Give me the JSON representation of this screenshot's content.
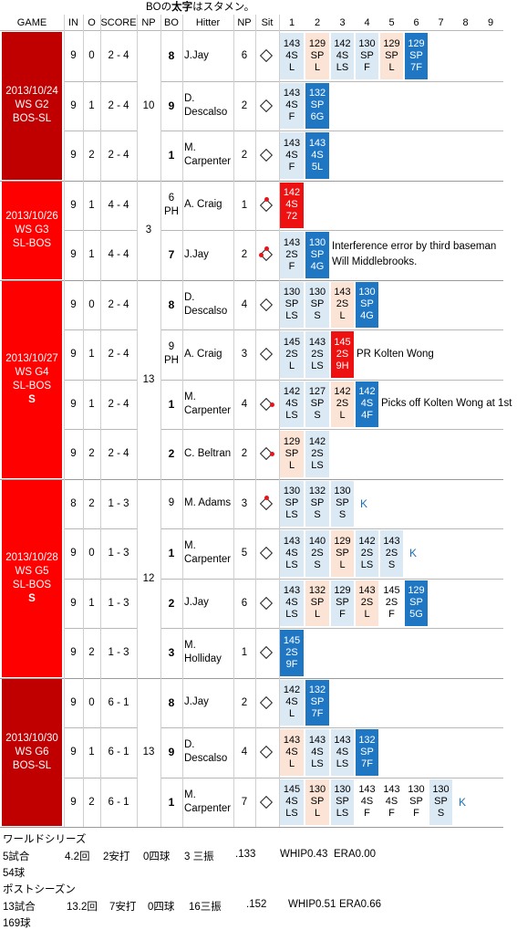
{
  "top_note": {
    "pre": "BOの",
    "bold": "太字",
    "post": "はスタメン。"
  },
  "headers": [
    "GAME",
    "IN",
    "O",
    "SCORE",
    "NP",
    "BO",
    "Hitter",
    "NP",
    "Sit",
    "1",
    "2",
    "3",
    "4",
    "5",
    "6",
    "7",
    "8",
    "9"
  ],
  "colors": {
    "ws_dark": "#c00000",
    "ws_bright": "#ff0000",
    "strike_blue": "#1f77c4",
    "ball_peach": "#fbe4d5",
    "strike_light": "#dbe9f4",
    "hit_red": "#ee1111",
    "k_color": "#1f6fb5",
    "runner_dot": "#e8141c"
  },
  "games": [
    {
      "lines": [
        "2013/10/24",
        "WS G2",
        "BOS-SL"
      ],
      "extra": "",
      "color": "ws_dark",
      "np": "10",
      "rows": [
        {
          "in": "9",
          "o": "0",
          "score": "2 - 4",
          "bo": "8",
          "starter": true,
          "hitter": "J.Jay",
          "np": "6",
          "sit": {
            "show": true,
            "runners": []
          },
          "pitches": [
            {
              "t": [
                "143",
                "4S",
                "L"
              ],
              "c": "light"
            },
            {
              "t": [
                "129",
                "SP",
                "L"
              ],
              "c": "peach"
            },
            {
              "t": [
                "142",
                "4S",
                "LS"
              ],
              "c": "light"
            },
            {
              "t": [
                "130",
                "SP",
                "F"
              ],
              "c": "light"
            },
            {
              "t": [
                "129",
                "SP",
                "L"
              ],
              "c": "peach"
            },
            {
              "t": [
                "129",
                "SP",
                "7F"
              ],
              "c": "blue"
            }
          ],
          "note": "",
          "k": ""
        },
        {
          "in": "9",
          "o": "1",
          "score": "2 - 4",
          "bo": "9",
          "starter": true,
          "hitter": "D. Descalso",
          "np": "2",
          "sit": {
            "show": true,
            "runners": []
          },
          "pitches": [
            {
              "t": [
                "143",
                "4S",
                "F"
              ],
              "c": "light"
            },
            {
              "t": [
                "132",
                "SP",
                "6G"
              ],
              "c": "blue"
            }
          ],
          "note": "",
          "k": ""
        },
        {
          "in": "9",
          "o": "2",
          "score": "2 - 4",
          "bo": "1",
          "starter": true,
          "hitter": "M. Carpenter",
          "np": "2",
          "sit": {
            "show": true,
            "runners": []
          },
          "pitches": [
            {
              "t": [
                "143",
                "4S",
                "F"
              ],
              "c": "light"
            },
            {
              "t": [
                "143",
                "4S",
                "5L"
              ],
              "c": "blue"
            }
          ],
          "note": "",
          "k": ""
        }
      ]
    },
    {
      "lines": [
        "2013/10/26",
        "WS G3",
        "SL-BOS"
      ],
      "extra": "",
      "color": "ws_bright",
      "np": "3",
      "rows": [
        {
          "in": "9",
          "o": "1",
          "score": "4 - 4",
          "bo": "6 PH",
          "starter": false,
          "hitter": "A. Craig",
          "np": "1",
          "sit": {
            "show": true,
            "runners": [
              "2B"
            ]
          },
          "pitches": [
            {
              "t": [
                "142",
                "4S",
                "72"
              ],
              "c": "red"
            }
          ],
          "note": "",
          "k": ""
        },
        {
          "in": "9",
          "o": "1",
          "score": "4 - 4",
          "bo": "7",
          "starter": true,
          "hitter": "J.Jay",
          "np": "2",
          "sit": {
            "show": true,
            "runners": [
              "2B",
              "3B"
            ]
          },
          "pitches": [
            {
              "t": [
                "143",
                "2S",
                "F"
              ],
              "c": "light"
            },
            {
              "t": [
                "130",
                "SP",
                "4G"
              ],
              "c": "blue"
            }
          ],
          "note": "Interference error by third baseman Will Middlebrooks.",
          "k": ""
        }
      ]
    },
    {
      "lines": [
        "2013/10/27",
        "WS G4",
        "SL-BOS"
      ],
      "extra": "S",
      "color": "ws_bright",
      "np": "13",
      "rows": [
        {
          "in": "9",
          "o": "0",
          "score": "2 - 4",
          "bo": "8",
          "starter": true,
          "hitter": "D. Descalso",
          "np": "4",
          "sit": {
            "show": true,
            "runners": []
          },
          "pitches": [
            {
              "t": [
                "130",
                "SP",
                "LS"
              ],
              "c": "light"
            },
            {
              "t": [
                "130",
                "SP",
                "S"
              ],
              "c": "light"
            },
            {
              "t": [
                "143",
                "2S",
                "L"
              ],
              "c": "peach"
            },
            {
              "t": [
                "130",
                "SP",
                "4G"
              ],
              "c": "blue"
            }
          ],
          "note": "",
          "k": ""
        },
        {
          "in": "9",
          "o": "1",
          "score": "2 - 4",
          "bo": "9 PH",
          "starter": false,
          "hitter": "A. Craig",
          "np": "3",
          "sit": {
            "show": true,
            "runners": []
          },
          "pitches": [
            {
              "t": [
                "145",
                "2S",
                "L"
              ],
              "c": "light"
            },
            {
              "t": [
                "143",
                "2S",
                "LS"
              ],
              "c": "light"
            },
            {
              "t": [
                "145",
                "2S",
                "9H"
              ],
              "c": "red"
            }
          ],
          "note": "PR Kolten Wong",
          "k": ""
        },
        {
          "in": "9",
          "o": "1",
          "score": "2 - 4",
          "bo": "1",
          "starter": true,
          "hitter": "M. Carpenter",
          "np": "4",
          "sit": {
            "show": true,
            "runners": [
              "1B"
            ]
          },
          "pitches": [
            {
              "t": [
                "142",
                "4S",
                "LS"
              ],
              "c": "light"
            },
            {
              "t": [
                "127",
                "SP",
                "S"
              ],
              "c": "light"
            },
            {
              "t": [
                "142",
                "2S",
                "L"
              ],
              "c": "peach"
            },
            {
              "t": [
                "142",
                "4S",
                "4F"
              ],
              "c": "blue"
            }
          ],
          "note": "Picks off Kolten Wong at 1st",
          "k": ""
        },
        {
          "in": "9",
          "o": "2",
          "score": "2 - 4",
          "bo": "2",
          "starter": true,
          "hitter": "C. Beltran",
          "np": "2",
          "sit": {
            "show": true,
            "runners": [
              "1B"
            ]
          },
          "pitches": [
            {
              "t": [
                "129",
                "SP",
                "L"
              ],
              "c": "peach"
            },
            {
              "t": [
                "142",
                "2S",
                "LS"
              ],
              "c": "light"
            }
          ],
          "note": "",
          "k": ""
        }
      ]
    },
    {
      "lines": [
        "2013/10/28",
        "WS G5",
        "SL-BOS"
      ],
      "extra": "S",
      "color": "ws_bright",
      "np": "12",
      "rows": [
        {
          "in": "8",
          "o": "2",
          "score": "1 - 3",
          "bo": "9",
          "starter": false,
          "hitter": "M. Adams",
          "np": "3",
          "sit": {
            "show": true,
            "runners": [
              "2B"
            ]
          },
          "np_first": "3",
          "pitches": [
            {
              "t": [
                "130",
                "SP",
                "LS"
              ],
              "c": "light"
            },
            {
              "t": [
                "132",
                "SP",
                "S"
              ],
              "c": "light"
            },
            {
              "t": [
                "130",
                "SP",
                "S"
              ],
              "c": "light"
            }
          ],
          "note": "",
          "k": "K"
        },
        {
          "in": "9",
          "o": "0",
          "score": "1 - 3",
          "bo": "1",
          "starter": true,
          "hitter": "M. Carpenter",
          "np": "5",
          "sit": {
            "show": true,
            "runners": []
          },
          "pitches": [
            {
              "t": [
                "143",
                "4S",
                "LS"
              ],
              "c": "light"
            },
            {
              "t": [
                "140",
                "2S",
                "S"
              ],
              "c": "light"
            },
            {
              "t": [
                "129",
                "SP",
                "L"
              ],
              "c": "peach"
            },
            {
              "t": [
                "142",
                "2S",
                "LS"
              ],
              "c": "light"
            },
            {
              "t": [
                "143",
                "2S",
                "S"
              ],
              "c": "light"
            }
          ],
          "note": "",
          "k": "K"
        },
        {
          "in": "9",
          "o": "1",
          "score": "1 - 3",
          "bo": "2",
          "starter": true,
          "hitter": "J.Jay",
          "np": "6",
          "sit": {
            "show": true,
            "runners": []
          },
          "pitches": [
            {
              "t": [
                "143",
                "4S",
                "LS"
              ],
              "c": "light"
            },
            {
              "t": [
                "132",
                "SP",
                "L"
              ],
              "c": "peach"
            },
            {
              "t": [
                "129",
                "SP",
                "F"
              ],
              "c": "light"
            },
            {
              "t": [
                "143",
                "2S",
                "L"
              ],
              "c": "peach"
            },
            {
              "t": [
                "145",
                "2S",
                "F"
              ],
              "c": "white"
            },
            {
              "t": [
                "129",
                "SP",
                "5G"
              ],
              "c": "blue"
            }
          ],
          "note": "",
          "k": ""
        },
        {
          "in": "9",
          "o": "2",
          "score": "1 - 3",
          "bo": "3",
          "starter": true,
          "hitter": "M. Holliday",
          "np": "1",
          "sit": {
            "show": true,
            "runners": []
          },
          "pitches": [
            {
              "t": [
                "145",
                "2S",
                "9F"
              ],
              "c": "blue"
            }
          ],
          "note": "",
          "k": ""
        }
      ]
    },
    {
      "lines": [
        "2013/10/30",
        "WS G6",
        "BOS-SL"
      ],
      "extra": "",
      "color": "ws_dark",
      "np": "13",
      "rows": [
        {
          "in": "9",
          "o": "0",
          "score": "6 - 1",
          "bo": "8",
          "starter": true,
          "hitter": "J.Jay",
          "np": "2",
          "sit": {
            "show": true,
            "runners": []
          },
          "pitches": [
            {
              "t": [
                "142",
                "4S",
                "L"
              ],
              "c": "light"
            },
            {
              "t": [
                "132",
                "SP",
                "7F"
              ],
              "c": "blue"
            }
          ],
          "note": "",
          "k": ""
        },
        {
          "in": "9",
          "o": "1",
          "score": "6 - 1",
          "bo": "9",
          "starter": true,
          "hitter": "D. Descalso",
          "np": "4",
          "sit": {
            "show": true,
            "runners": []
          },
          "pitches": [
            {
              "t": [
                "143",
                "4S",
                "L"
              ],
              "c": "peach"
            },
            {
              "t": [
                "143",
                "4S",
                "LS"
              ],
              "c": "light"
            },
            {
              "t": [
                "143",
                "4S",
                "LS"
              ],
              "c": "light"
            },
            {
              "t": [
                "132",
                "SP",
                "7F"
              ],
              "c": "blue"
            }
          ],
          "note": "",
          "k": ""
        },
        {
          "in": "9",
          "o": "2",
          "score": "6 - 1",
          "bo": "1",
          "starter": true,
          "hitter": "M. Carpenter",
          "np": "7",
          "sit": {
            "show": true,
            "runners": []
          },
          "pitches": [
            {
              "t": [
                "145",
                "4S",
                "LS"
              ],
              "c": "light"
            },
            {
              "t": [
                "130",
                "SP",
                "L"
              ],
              "c": "peach"
            },
            {
              "t": [
                "130",
                "SP",
                "LS"
              ],
              "c": "light"
            },
            {
              "t": [
                "143",
                "4S",
                "F"
              ],
              "c": "white"
            },
            {
              "t": [
                "143",
                "4S",
                "F"
              ],
              "c": "white"
            },
            {
              "t": [
                "130",
                "SP",
                "F"
              ],
              "c": "white"
            },
            {
              "t": [
                "130",
                "SP",
                "S"
              ],
              "c": "light"
            }
          ],
          "note": "",
          "k": "K"
        }
      ]
    }
  ],
  "summary": {
    "ws_title": "ワールドシリーズ",
    "ws_games": "5試合",
    "ws_ip": "4.2回",
    "ws_hits": "2安打",
    "ws_bb": "0四球",
    "ws_k": "3 三振",
    "ws_avg": ".133",
    "ws_whip": "WHIP0.43",
    "ws_era": "ERA0.00",
    "ws_pitches": "54球",
    "ps_title": "ポストシーズン",
    "ps_games": "13試合",
    "ps_ip": "13.2回",
    "ps_hits": "7安打",
    "ps_bb": "0四球",
    "ps_k": "16三振",
    "ps_avg": ".152",
    "ps_whip": "WHIP0.51",
    "ps_era": "ERA0.66",
    "ps_pitches": "169球"
  }
}
